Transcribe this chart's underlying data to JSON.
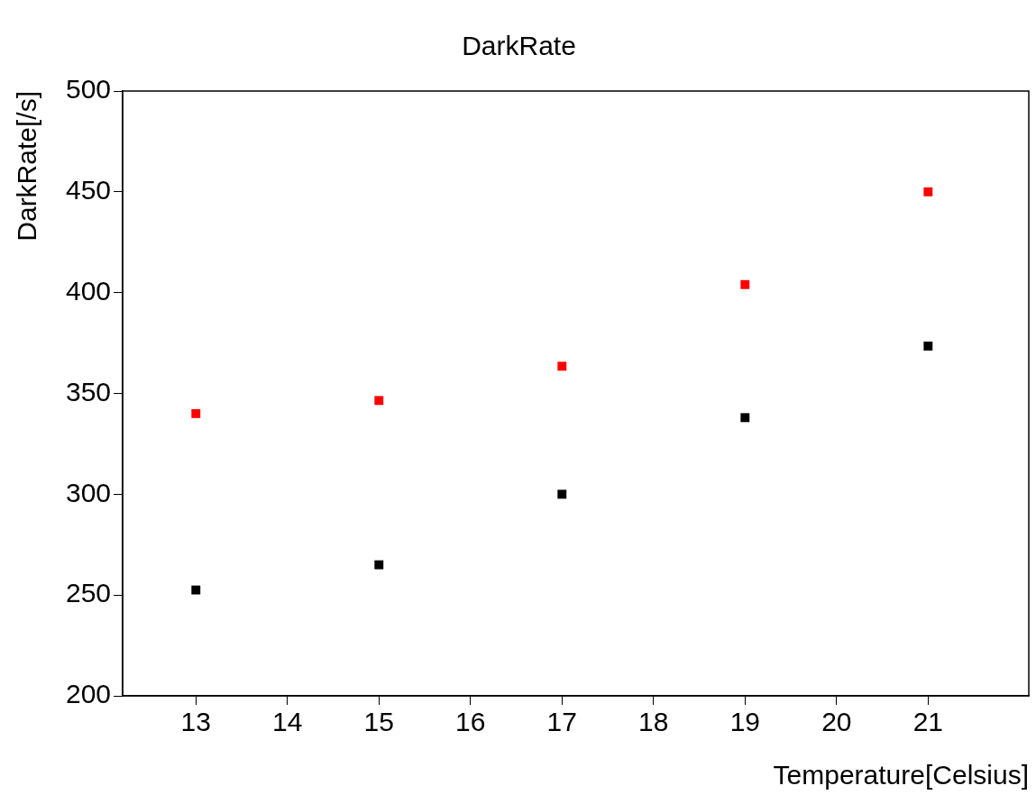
{
  "chart_data": {
    "type": "scatter",
    "title": "DarkRate",
    "xlabel": "Temperature[Celsius]",
    "ylabel": "DarkRate[/s]",
    "x": [
      13,
      15,
      17,
      19,
      21
    ],
    "series": [
      {
        "color": "#ff0000",
        "values": [
          340,
          346.5,
          363.5,
          404,
          450
        ]
      },
      {
        "color": "#000000",
        "values": [
          252.5,
          265,
          300,
          338,
          373.5
        ]
      }
    ],
    "xlim": [
      12.2,
      22.1
    ],
    "xticks": [
      13,
      14,
      15,
      16,
      17,
      18,
      19,
      20,
      21
    ],
    "ylim": [
      200,
      500
    ],
    "yticks": [
      200,
      250,
      300,
      350,
      400,
      450,
      500
    ],
    "grid": false,
    "legend": false,
    "marker": "square"
  }
}
